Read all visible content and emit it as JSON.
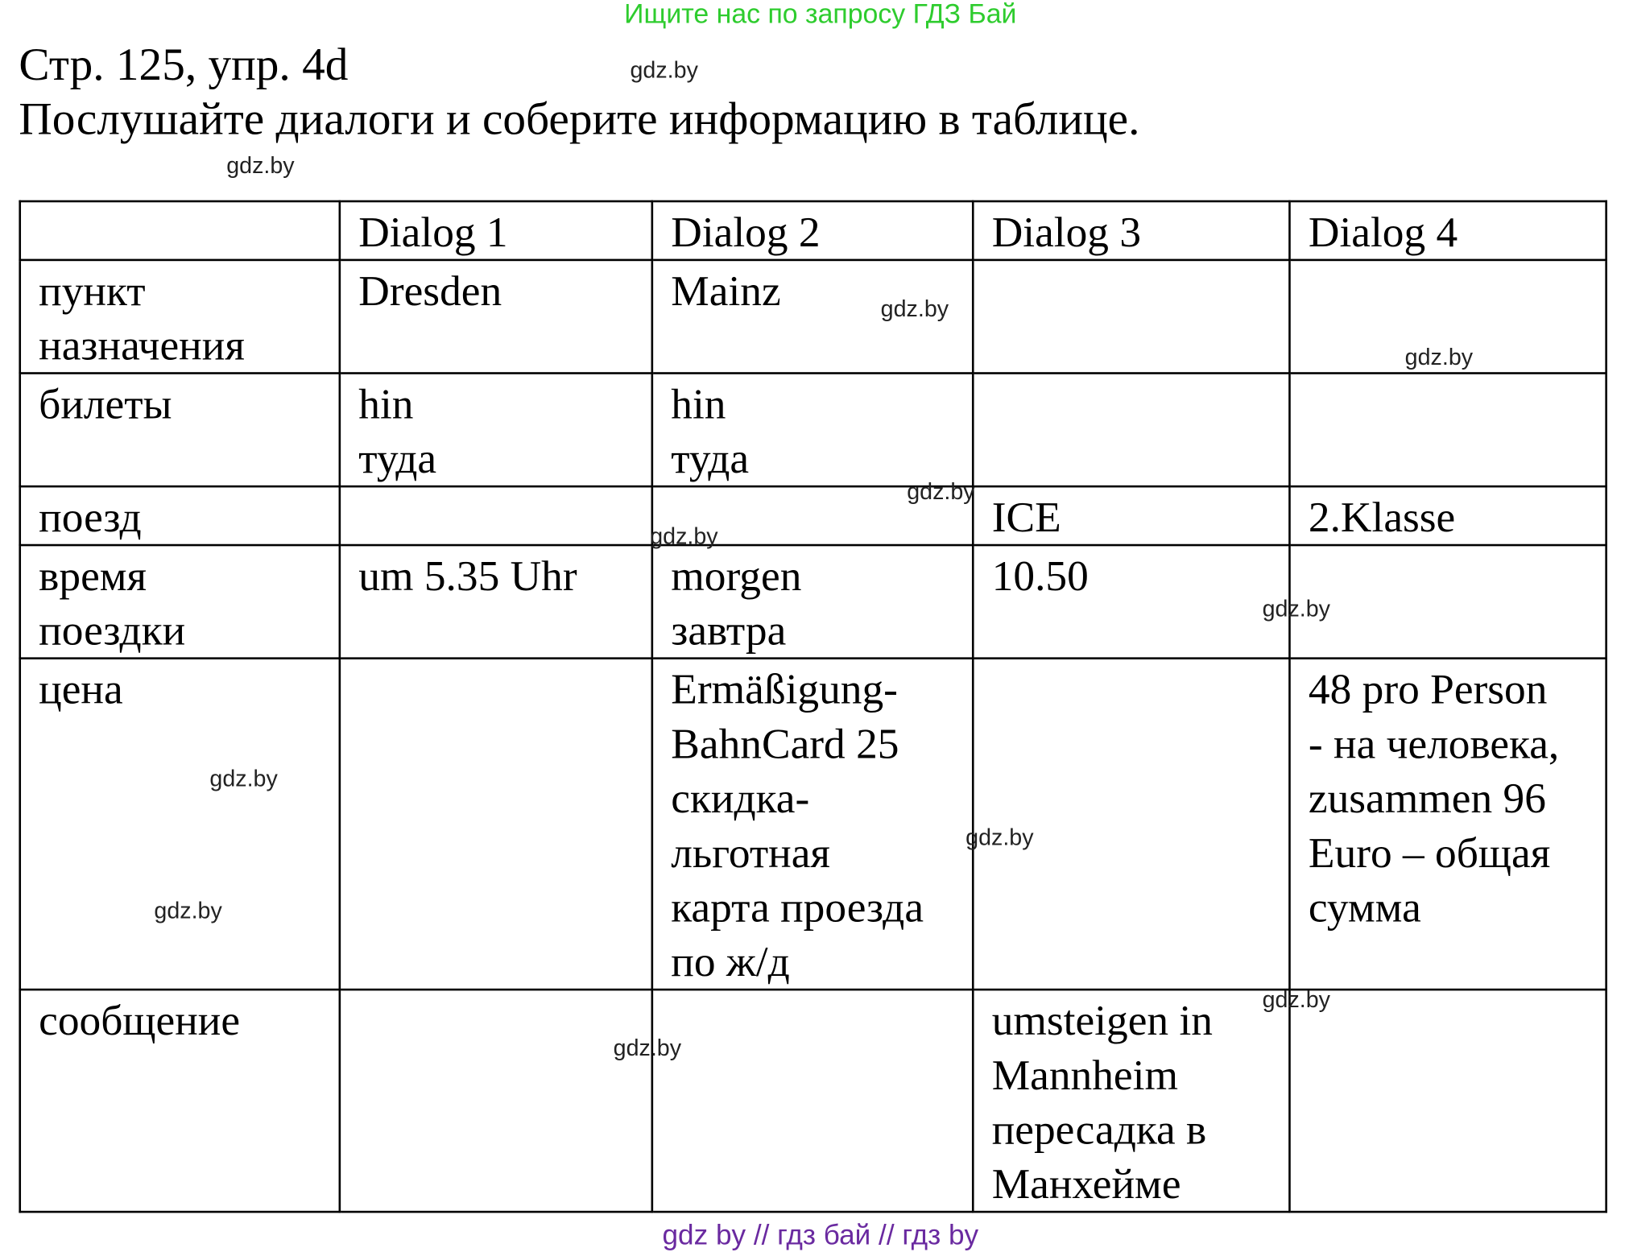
{
  "banner": "Ищите нас по запросу ГДЗ Бай",
  "page_ref": "Стр. 125, упр. 4d",
  "instruction": "Послушайте диалоги и соберите информацию в таблице.",
  "watermark": "gdz.by",
  "table": {
    "headers": [
      "",
      "Dialog 1",
      "Dialog 2",
      "Dialog 3",
      "Dialog 4"
    ],
    "rows": [
      {
        "label": "пункт\nназначения",
        "cells": [
          "Dresden",
          "Mainz",
          "",
          ""
        ]
      },
      {
        "label": "билеты",
        "cells": [
          "hin\nтуда",
          "hin\nтуда",
          "",
          ""
        ]
      },
      {
        "label": "поезд",
        "cells": [
          "",
          "",
          "ICE",
          "2.Klasse"
        ]
      },
      {
        "label": "время\nпоездки",
        "cells": [
          "um 5.35 Uhr",
          "morgen\nзавтра",
          "10.50",
          ""
        ]
      },
      {
        "label": "цена",
        "cells": [
          "",
          "Ermäßigung-\nBahnCard 25\nскидка-\nльготная\nкарта проезда\nпо ж/д",
          "",
          "48 pro Person\n- на человека,\nzusammen 96\nEuro – общая\nсумма"
        ]
      },
      {
        "label": "сообщение",
        "cells": [
          "",
          "",
          "umsteigen in\nMannheim\nпересадка в\nМанхейме",
          ""
        ]
      }
    ]
  },
  "footer": "gdz by  //  гдз бай  //  гдз by"
}
